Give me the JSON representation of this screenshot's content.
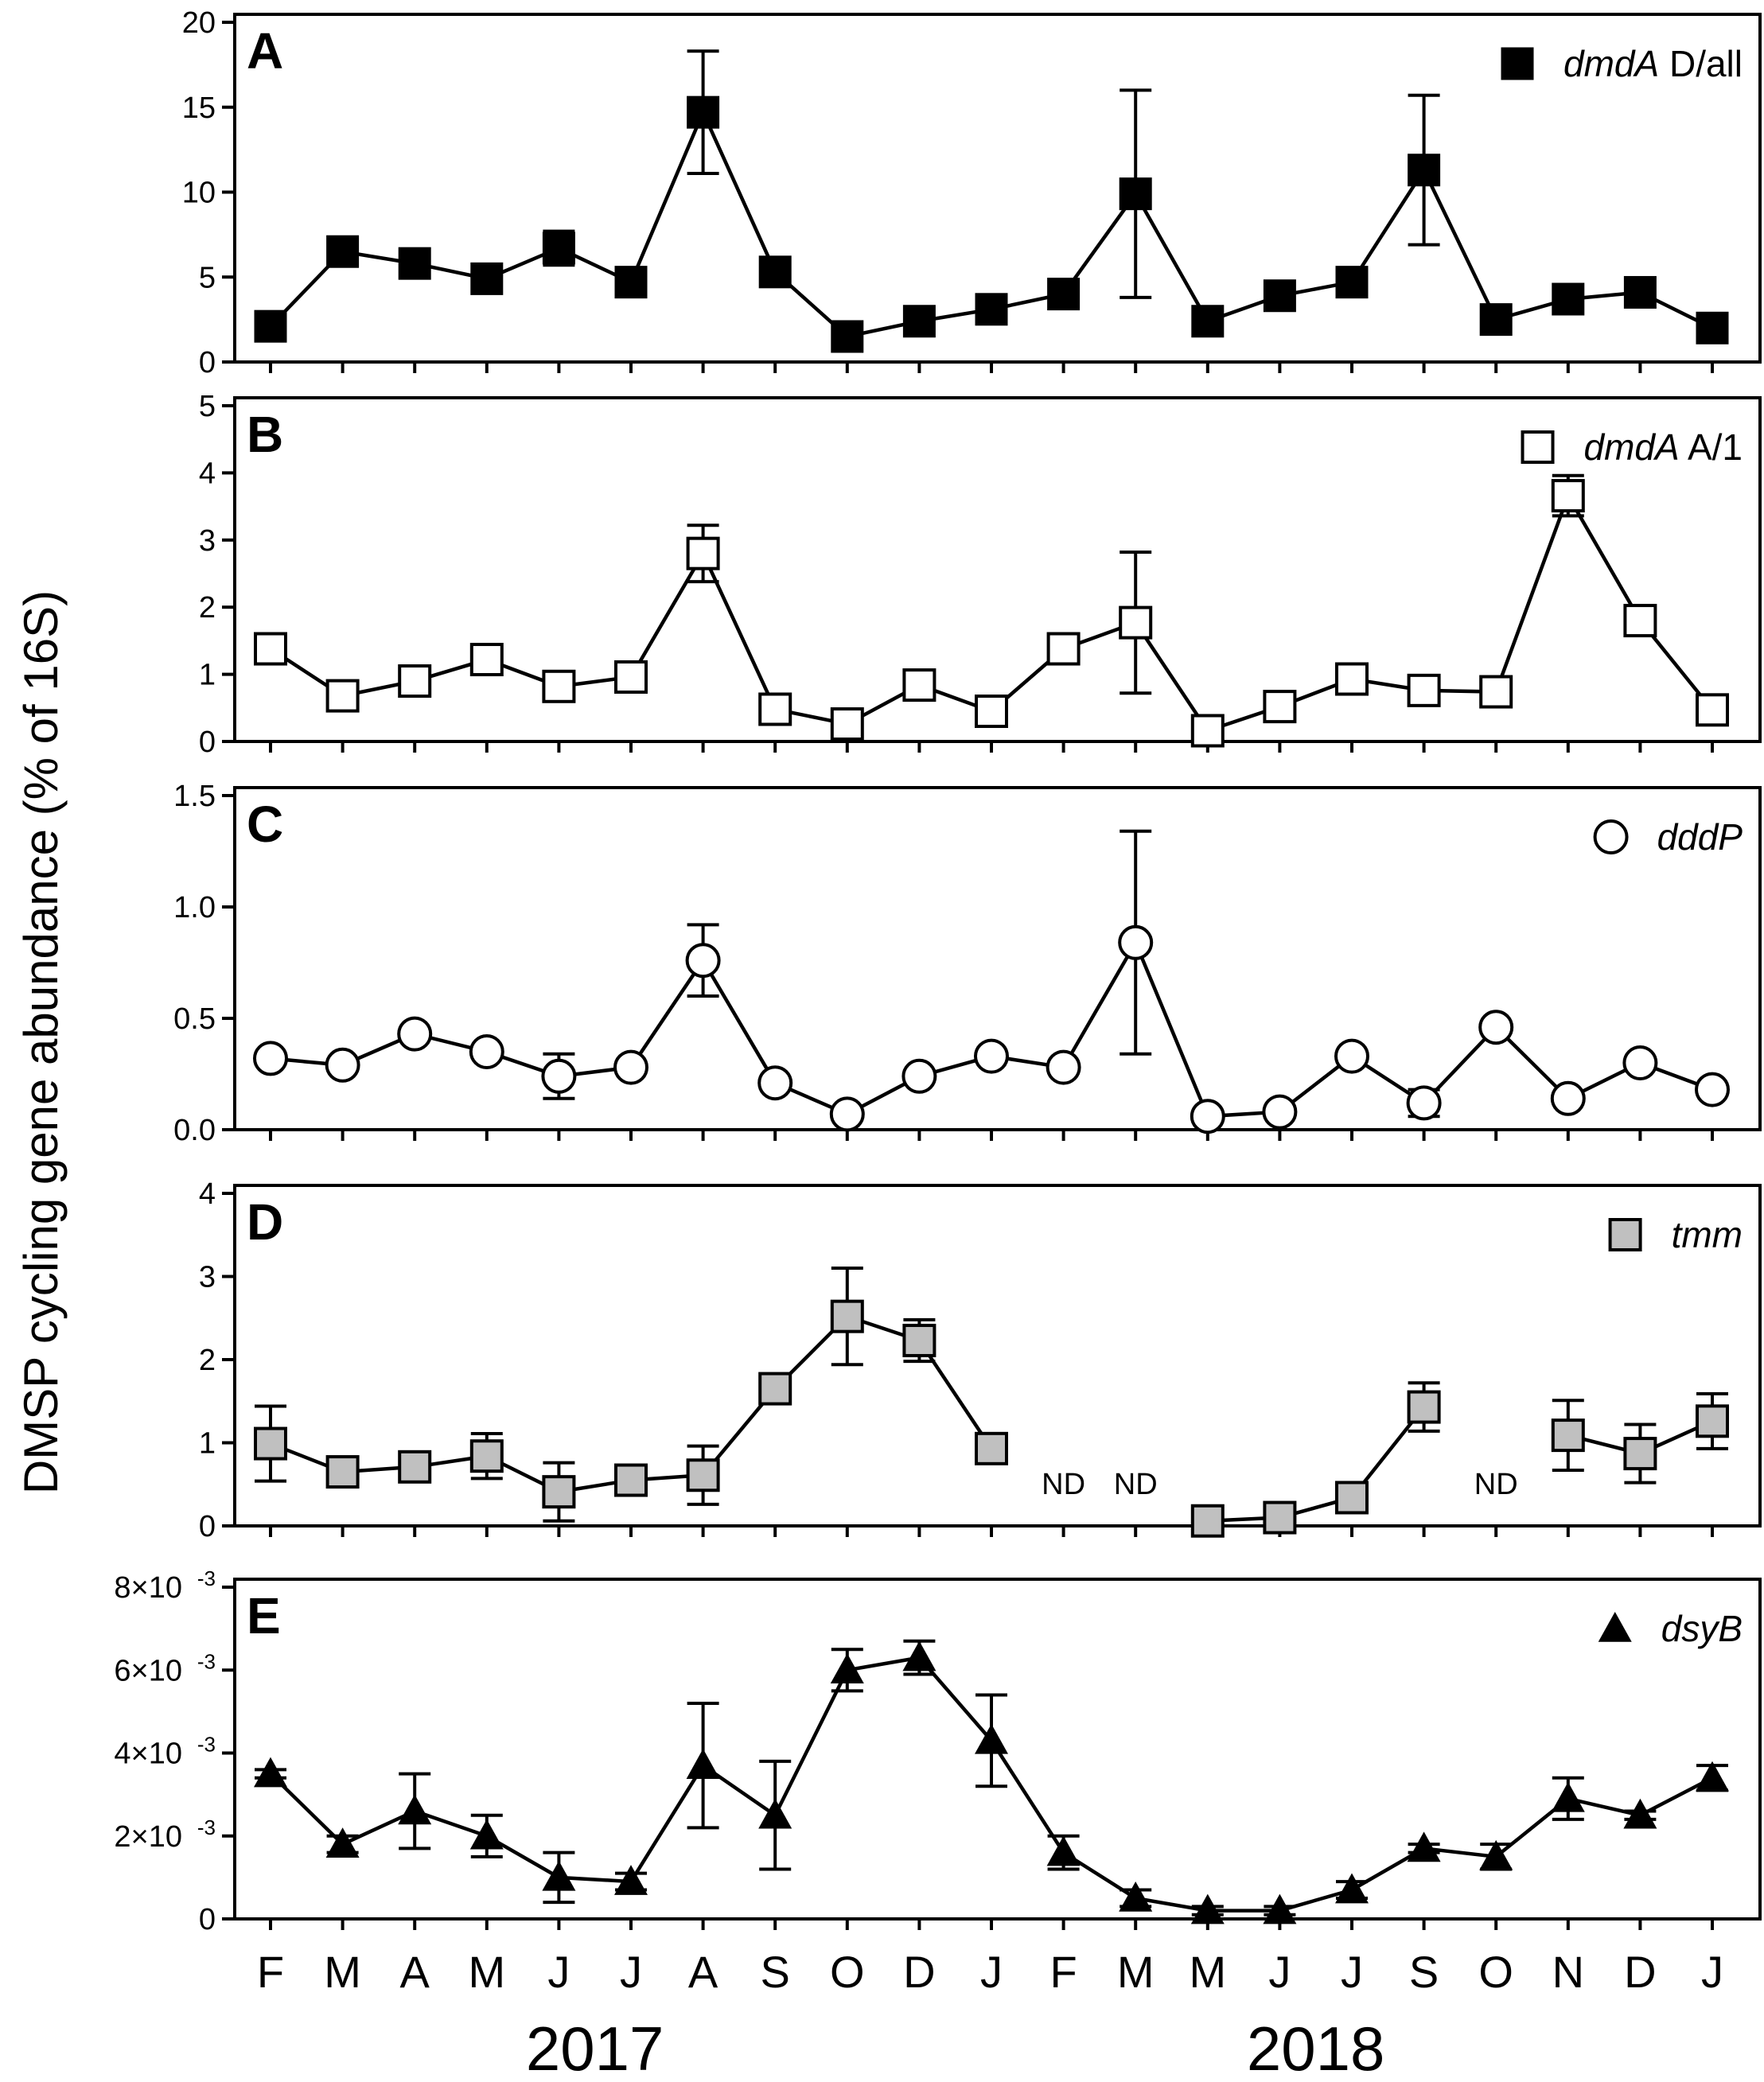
{
  "chart_data": {
    "type": "line",
    "ylabel": "DMSP cycling gene abundance (% of 16S)",
    "months": [
      "F",
      "M",
      "A",
      "M",
      "J",
      "J",
      "A",
      "S",
      "O",
      "D",
      "J",
      "F",
      "M",
      "M",
      "J",
      "J",
      "S",
      "O",
      "N",
      "D",
      "J"
    ],
    "years": [
      "2017",
      "2018"
    ],
    "panels": [
      {
        "letter": "A",
        "legend_italic": "dmdA",
        "legend_rest": " D/all",
        "marker": "square-filled",
        "ylim": [
          0,
          20
        ],
        "yticks": [
          0,
          5,
          10,
          15,
          20
        ],
        "ytick_labels": [
          "0",
          "5",
          "10",
          "15",
          "20"
        ],
        "values": [
          2.1,
          6.5,
          5.8,
          4.9,
          6.7,
          4.7,
          14.7,
          5.3,
          1.5,
          2.4,
          3.1,
          4.0,
          9.9,
          2.4,
          3.9,
          4.7,
          11.3,
          2.5,
          3.7,
          4.1,
          2.0
        ],
        "err_lo": [
          0.3,
          0.4,
          0.4,
          0.4,
          1.0,
          0.5,
          3.6,
          0.5,
          0.3,
          0.3,
          0.3,
          0.3,
          6.1,
          0.3,
          0.4,
          0.4,
          4.4,
          0.3,
          0.4,
          0.6,
          0.3
        ],
        "err_hi": [
          0.3,
          0.4,
          0.4,
          0.4,
          1.0,
          0.5,
          3.6,
          0.5,
          0.3,
          0.3,
          0.3,
          0.3,
          6.1,
          0.3,
          0.4,
          0.4,
          4.4,
          0.3,
          0.4,
          0.6,
          0.3
        ],
        "nd_label": "",
        "nd_indices": []
      },
      {
        "letter": "B",
        "legend_italic": "dmdA",
        "legend_rest": " A/1",
        "marker": "square-open",
        "ylim": [
          0,
          5
        ],
        "yticks": [
          0,
          1,
          2,
          3,
          4,
          5
        ],
        "ytick_labels": [
          "0",
          "1",
          "2",
          "3",
          "4",
          "5"
        ],
        "values": [
          1.38,
          0.68,
          0.9,
          1.22,
          0.82,
          0.96,
          2.8,
          0.48,
          0.26,
          0.84,
          0.45,
          1.38,
          1.77,
          0.16,
          0.52,
          0.93,
          0.76,
          0.74,
          3.66,
          1.8,
          0.47
        ],
        "err_lo": [
          0.05,
          0.05,
          0.05,
          0.05,
          0.05,
          0.05,
          0.42,
          0.05,
          0.05,
          0.05,
          0.05,
          0.05,
          1.05,
          0.05,
          0.05,
          0.05,
          0.05,
          0.05,
          0.3,
          0.05,
          0.05
        ],
        "err_hi": [
          0.05,
          0.05,
          0.05,
          0.05,
          0.05,
          0.05,
          0.42,
          0.05,
          0.05,
          0.05,
          0.05,
          0.05,
          1.05,
          0.05,
          0.05,
          0.05,
          0.05,
          0.05,
          0.3,
          0.05,
          0.05
        ],
        "nd_label": "",
        "nd_indices": []
      },
      {
        "letter": "C",
        "legend_italic": "dddP",
        "legend_rest": "",
        "marker": "circle-open",
        "ylim": [
          0,
          1.5
        ],
        "yticks": [
          0,
          0.5,
          1.0,
          1.5
        ],
        "ytick_labels": [
          "0.0",
          "0.5",
          "1.0",
          "1.5"
        ],
        "values": [
          0.32,
          0.29,
          0.43,
          0.35,
          0.24,
          0.28,
          0.76,
          0.21,
          0.07,
          0.24,
          0.33,
          0.28,
          0.84,
          0.06,
          0.08,
          0.33,
          0.12,
          0.46,
          0.14,
          0.3,
          0.18
        ],
        "err_lo": [
          0.01,
          0.01,
          0.01,
          0.01,
          0.1,
          0.01,
          0.16,
          0.01,
          0.01,
          0.01,
          0.01,
          0.01,
          0.5,
          0.01,
          0.01,
          0.01,
          0.06,
          0.01,
          0.01,
          0.01,
          0.01
        ],
        "err_hi": [
          0.01,
          0.01,
          0.01,
          0.01,
          0.1,
          0.01,
          0.16,
          0.01,
          0.01,
          0.01,
          0.01,
          0.01,
          0.5,
          0.01,
          0.01,
          0.01,
          0.06,
          0.01,
          0.01,
          0.01,
          0.01
        ],
        "nd_label": "",
        "nd_indices": []
      },
      {
        "letter": "D",
        "legend_italic": "tmm",
        "legend_rest": "",
        "marker": "square-gray",
        "ylim": [
          0,
          4
        ],
        "yticks": [
          0,
          1,
          2,
          3,
          4
        ],
        "ytick_labels": [
          "0",
          "1",
          "2",
          "3",
          "4"
        ],
        "values": [
          0.99,
          0.65,
          0.71,
          0.84,
          0.41,
          0.55,
          0.61,
          1.65,
          2.52,
          2.23,
          0.93,
          null,
          null,
          0.06,
          0.1,
          0.34,
          1.43,
          null,
          1.09,
          0.87,
          1.26
        ],
        "err_lo": [
          0.45,
          0.05,
          0.05,
          0.27,
          0.35,
          0.05,
          0.35,
          0.05,
          0.58,
          0.25,
          0.1,
          0,
          0,
          0.03,
          0.05,
          0.05,
          0.29,
          0,
          0.42,
          0.35,
          0.33
        ],
        "err_hi": [
          0.45,
          0.05,
          0.05,
          0.27,
          0.35,
          0.05,
          0.35,
          0.05,
          0.58,
          0.25,
          0.1,
          0,
          0,
          0.03,
          0.05,
          0.05,
          0.29,
          0,
          0.42,
          0.35,
          0.33
        ],
        "nd_label": "ND",
        "nd_indices": [
          11,
          12,
          17
        ]
      },
      {
        "letter": "E",
        "legend_italic": "dsyB",
        "legend_rest": "",
        "marker": "triangle-filled",
        "ylim": [
          0,
          0.008
        ],
        "yticks": [
          0,
          0.002,
          0.004,
          0.006,
          0.008
        ],
        "ytick_labels": [
          "0",
          "2×10",
          "4×10",
          "6×10",
          "8×10"
        ],
        "ytick_exp": [
          "",
          "-3",
          "-3",
          "-3",
          "-3"
        ],
        "values": [
          0.0035,
          0.0018,
          0.0026,
          0.002,
          0.001,
          0.0009,
          0.0037,
          0.0025,
          0.006,
          0.0063,
          0.0043,
          0.0016,
          0.0005,
          0.0002,
          0.0002,
          0.0007,
          0.0017,
          0.0015,
          0.0029,
          0.0025,
          0.0034
        ],
        "err_lo": [
          0.0001,
          0.0002,
          0.0009,
          0.0005,
          0.0006,
          0.0002,
          0.0015,
          0.0013,
          0.0005,
          0.0004,
          0.0011,
          0.0004,
          0.0002,
          0.0001,
          0.0001,
          0.0002,
          0.0001,
          0.0003,
          0.0005,
          0.0001,
          0.0003
        ],
        "err_hi": [
          0.0001,
          0.0002,
          0.0009,
          0.0005,
          0.0006,
          0.0002,
          0.0015,
          0.0013,
          0.0005,
          0.0004,
          0.0011,
          0.0004,
          0.0002,
          0.0001,
          0.0001,
          0.0002,
          0.0001,
          0.0003,
          0.0005,
          0.0001,
          0.0003
        ],
        "nd_label": "",
        "nd_indices": []
      }
    ]
  },
  "colors": {
    "axis": "#000000",
    "filled": "#000000",
    "open": "#ffffff",
    "gray": "#c0c0c0"
  }
}
